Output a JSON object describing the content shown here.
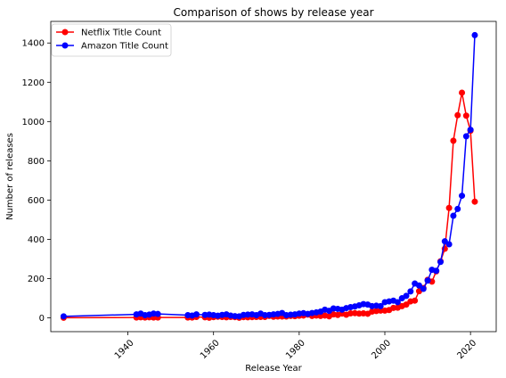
{
  "chart_data": {
    "type": "line",
    "title": "Comparison of shows by release year",
    "xlabel": "Release Year",
    "ylabel": "Number of releases",
    "xlim": [
      1922,
      2026
    ],
    "ylim": [
      -70,
      1510
    ],
    "xticks": [
      1940,
      1960,
      1980,
      2000,
      2020
    ],
    "yticks": [
      0,
      200,
      400,
      600,
      800,
      1000,
      1200,
      1400
    ],
    "grid": false,
    "legend": "top-left",
    "series": [
      {
        "name": "Netflix Title Count",
        "color": "#ff0000",
        "x": [
          1925,
          1942,
          1943,
          1944,
          1945,
          1946,
          1947,
          1954,
          1955,
          1956,
          1958,
          1959,
          1960,
          1961,
          1962,
          1963,
          1964,
          1965,
          1966,
          1967,
          1968,
          1969,
          1970,
          1971,
          1972,
          1973,
          1974,
          1975,
          1976,
          1977,
          1978,
          1979,
          1980,
          1981,
          1982,
          1983,
          1984,
          1985,
          1986,
          1987,
          1988,
          1989,
          1990,
          1991,
          1992,
          1993,
          1994,
          1995,
          1996,
          1997,
          1998,
          1999,
          2000,
          2001,
          2002,
          2003,
          2004,
          2005,
          2006,
          2007,
          2008,
          2009,
          2010,
          2011,
          2012,
          2013,
          2014,
          2015,
          2016,
          2017,
          2018,
          2019,
          2020,
          2021
        ],
        "values": [
          1,
          2,
          3,
          2,
          3,
          2,
          2,
          2,
          2,
          5,
          3,
          1,
          4,
          6,
          5,
          3,
          5,
          4,
          1,
          4,
          3,
          4,
          5,
          5,
          5,
          10,
          6,
          7,
          7,
          7,
          10,
          9,
          11,
          12,
          17,
          10,
          12,
          10,
          12,
          8,
          18,
          15,
          22,
          16,
          23,
          24,
          22,
          23,
          21,
          32,
          35,
          37,
          37,
          40,
          51,
          52,
          60,
          68,
          84,
          88,
          136,
          152,
          194,
          185,
          237,
          288,
          352,
          560,
          902,
          1032,
          1147,
          1030,
          953,
          592
        ]
      },
      {
        "name": "Amazon Title Count",
        "color": "#0000ff",
        "x": [
          1925,
          1942,
          1943,
          1944,
          1945,
          1946,
          1947,
          1954,
          1955,
          1956,
          1958,
          1959,
          1960,
          1961,
          1962,
          1963,
          1964,
          1965,
          1966,
          1967,
          1968,
          1969,
          1970,
          1971,
          1972,
          1973,
          1974,
          1975,
          1976,
          1977,
          1978,
          1979,
          1980,
          1981,
          1982,
          1983,
          1984,
          1985,
          1986,
          1987,
          1988,
          1989,
          1990,
          1991,
          1992,
          1993,
          1994,
          1995,
          1996,
          1997,
          1998,
          1999,
          2000,
          2001,
          2002,
          2003,
          2004,
          2005,
          2006,
          2007,
          2008,
          2009,
          2010,
          2011,
          2012,
          2013,
          2014,
          2015,
          2016,
          2017,
          2018,
          2019,
          2020,
          2021
        ],
        "values": [
          8,
          18,
          22,
          14,
          17,
          22,
          20,
          14,
          12,
          18,
          15,
          17,
          14,
          11,
          15,
          18,
          12,
          9,
          8,
          15,
          17,
          18,
          14,
          22,
          14,
          15,
          18,
          20,
          25,
          14,
          16,
          18,
          22,
          24,
          20,
          25,
          28,
          32,
          42,
          36,
          48,
          46,
          42,
          50,
          55,
          58,
          64,
          70,
          68,
          60,
          62,
          60,
          80,
          84,
          88,
          80,
          100,
          112,
          135,
          175,
          165,
          148,
          190,
          245,
          240,
          285,
          390,
          375,
          520,
          555,
          622,
          925,
          958,
          1440
        ]
      }
    ]
  }
}
